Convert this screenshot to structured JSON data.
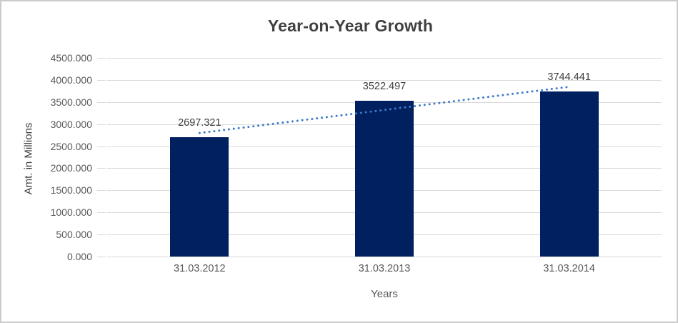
{
  "chart_data": {
    "type": "bar",
    "title": "Year-on-Year Growth",
    "xlabel": "Years",
    "ylabel": "Amt. in Millions",
    "categories": [
      "31.03.2012",
      "31.03.2013",
      "31.03.2014"
    ],
    "values": [
      2697.321,
      3522.497,
      3744.441
    ],
    "data_labels": [
      "2697.321",
      "3522.497",
      "3744.441"
    ],
    "y_ticks": [
      "0.000",
      "500.000",
      "1000.000",
      "1500.000",
      "2000.000",
      "2500.000",
      "3000.000",
      "3500.000",
      "4000.000",
      "4500.000"
    ],
    "ylim": [
      0,
      4500
    ],
    "grid": "horizontal",
    "legend": "none",
    "trendline": {
      "type": "linear",
      "style": "dotted"
    },
    "colors": {
      "bar": "#002060",
      "trendline": "#3c7ac8",
      "gridline": "#d9d9d9",
      "title_text": "#404040",
      "axis_text": "#595959",
      "data_label_text": "#404040"
    }
  }
}
